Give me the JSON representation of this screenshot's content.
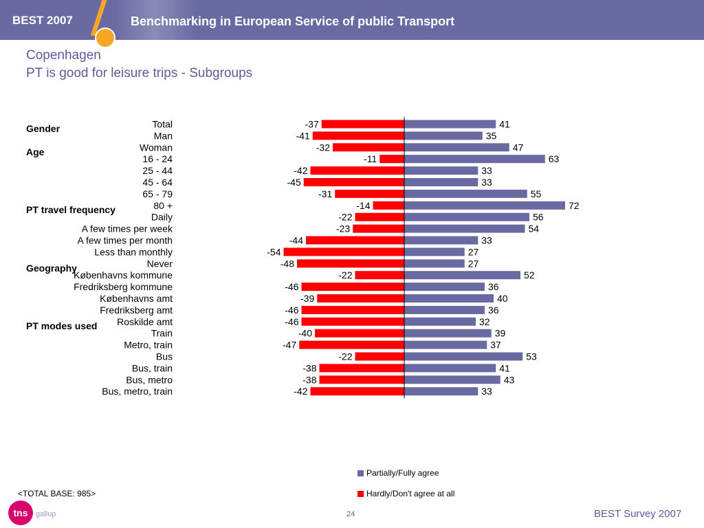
{
  "header": {
    "brand": "BEST 2007",
    "title": "Benchmarking in European Service of public Transport"
  },
  "page": {
    "city": "Copenhagen",
    "subtitle": "PT is good for leisure trips - Subgroups"
  },
  "groups": [
    {
      "label": "Gender",
      "before_row": 1
    },
    {
      "label": "Age",
      "before_row": 3
    },
    {
      "label": "PT travel frequency",
      "before_row": 8
    },
    {
      "label": "Geography",
      "before_row": 13
    },
    {
      "label": "PT modes used",
      "before_row": 18
    }
  ],
  "chart_data": {
    "type": "bar",
    "orientation": "horizontal-diverging",
    "categories": [
      "Total",
      "Man",
      "Woman",
      "16 - 24",
      "25 - 44",
      "45 - 64",
      "65 - 79",
      "80 +",
      "Daily",
      "A few times per week",
      "A few times per month",
      "Less than monthly",
      "Never",
      "Københavns kommune",
      "Fredriksberg kommune",
      "Københavns amt",
      "Fredriksberg amt",
      "Roskilde amt",
      "Train",
      "Metro, train",
      "Bus",
      "Bus, train",
      "Bus, metro",
      "Bus, metro, train"
    ],
    "series": [
      {
        "name": "Partially/Fully agree",
        "color": "#6a6aa3",
        "values": [
          41,
          35,
          47,
          63,
          33,
          33,
          55,
          72,
          56,
          54,
          33,
          27,
          27,
          52,
          36,
          40,
          36,
          32,
          39,
          37,
          53,
          41,
          43,
          33
        ]
      },
      {
        "name": "Hardly/Don't agree at all",
        "color": "#ff0000",
        "values": [
          -37,
          -41,
          -32,
          -11,
          -42,
          -45,
          -31,
          -14,
          -22,
          -23,
          -44,
          -54,
          -48,
          -22,
          -46,
          -39,
          -46,
          -46,
          -40,
          -47,
          -22,
          -38,
          -38,
          -42
        ]
      }
    ],
    "xlim": [
      -60,
      85
    ],
    "legend_position": "bottom-right"
  },
  "footer": {
    "base": "<TOTAL BASE: 985>",
    "logo": "tns",
    "logo_sub": "gallup",
    "page_number": "24",
    "right": "BEST Survey 2007"
  }
}
